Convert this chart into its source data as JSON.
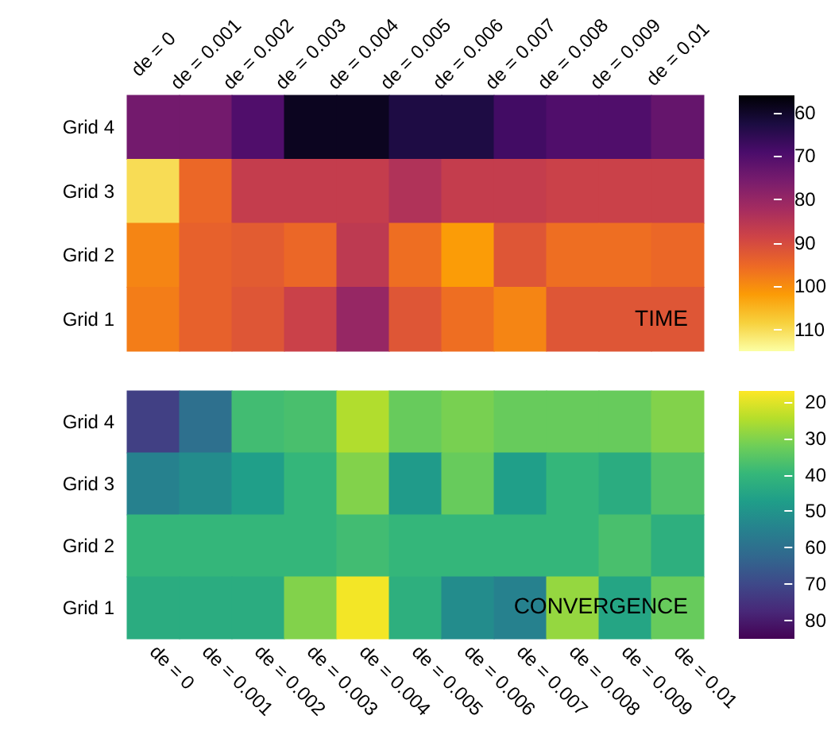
{
  "chart_data": [
    {
      "type": "heatmap",
      "categories": [
        "de = 0",
        "de = 0.001",
        "de = 0.002",
        "de = 0.003",
        "de = 0.004",
        "de = 0.005",
        "de = 0.006",
        "de = 0.007",
        "de = 0.008",
        "de = 0.009",
        "de = 0.01"
      ],
      "y_categories": [
        "Grid 4",
        "Grid 3",
        "Grid 2",
        "Grid 1"
      ],
      "cells": [
        [
          75,
          75,
          70,
          59,
          59,
          63,
          63,
          68,
          70,
          70,
          73
        ],
        [
          110,
          95,
          87,
          87,
          87,
          84,
          87,
          87,
          88,
          88,
          88
        ],
        [
          99,
          94,
          93,
          95,
          86,
          96,
          102,
          92,
          96,
          96,
          95
        ],
        [
          98,
          94,
          92,
          88,
          80,
          92,
          96,
          99,
          92,
          92,
          92
        ]
      ],
      "clim": [
        56,
        115
      ],
      "cticks": [
        60,
        70,
        80,
        90,
        100,
        110
      ],
      "annotations": [
        "TIME"
      ]
    },
    {
      "type": "heatmap",
      "categories": [
        "de = 0",
        "de = 0.001",
        "de = 0.002",
        "de = 0.003",
        "de = 0.004",
        "de = 0.005",
        "de = 0.006",
        "de = 0.007",
        "de = 0.008",
        "de = 0.009",
        "de = 0.01"
      ],
      "y_categories": [
        "Grid 4",
        "Grid 3",
        "Grid 2",
        "Grid 1"
      ],
      "cells": [
        [
          72,
          60,
          38,
          37,
          25,
          33,
          31,
          33,
          33,
          33,
          30
        ],
        [
          55,
          52,
          47,
          40,
          30,
          48,
          33,
          47,
          40,
          43,
          36
        ],
        [
          40,
          40,
          40,
          40,
          38,
          40,
          40,
          40,
          40,
          37,
          42
        ],
        [
          43,
          43,
          43,
          30,
          18,
          42,
          52,
          55,
          28,
          45,
          33
        ]
      ],
      "clim": [
        17,
        85
      ],
      "cticks": [
        20,
        30,
        40,
        50,
        60,
        70,
        80
      ],
      "annotations": [
        "CONVERGENCE"
      ]
    }
  ]
}
